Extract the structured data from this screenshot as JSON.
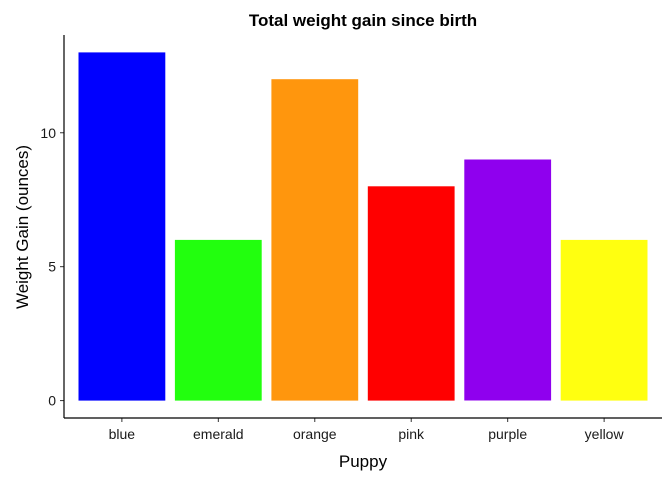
{
  "chart_data": {
    "type": "bar",
    "title": "Total weight gain since birth",
    "xlabel": "Puppy",
    "ylabel": "Weight Gain (ounces)",
    "categories": [
      "blue",
      "emerald",
      "orange",
      "pink",
      "purple",
      "yellow"
    ],
    "values": [
      13,
      6,
      12,
      8,
      9,
      6
    ],
    "colors": [
      "#0000FF",
      "#22FF0E",
      "#FF960D",
      "#FF0000",
      "#8F00EE",
      "#FFFF10"
    ],
    "yticks": [
      0,
      5,
      10
    ],
    "ylim": [
      -0.65,
      13.65
    ],
    "grid": false,
    "legend": "none"
  }
}
